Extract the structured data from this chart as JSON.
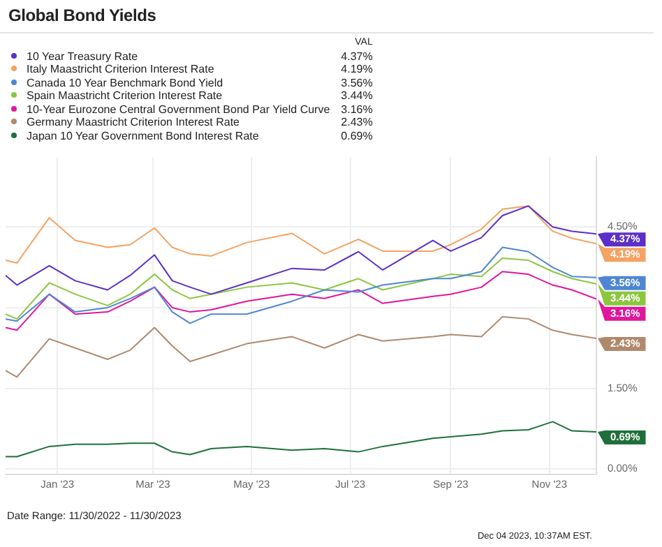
{
  "chart_data": {
    "type": "line",
    "title": "Global Bond Yields",
    "legend_title": "VAL",
    "legend": "top left",
    "grid": true,
    "marker": "none",
    "line_style": "solid",
    "x": [
      "2022-11-30",
      "2022-12-07",
      "2022-12-27",
      "2023-01-12",
      "2023-02-01",
      "2023-02-15",
      "2023-03-02",
      "2023-03-13",
      "2023-03-24",
      "2023-04-06",
      "2023-04-28",
      "2023-05-26",
      "2023-06-15",
      "2023-07-06",
      "2023-07-21",
      "2023-08-21",
      "2023-09-01",
      "2023-09-20",
      "2023-10-03",
      "2023-10-19",
      "2023-11-03",
      "2023-11-15",
      "2023-11-30"
    ],
    "xlim": [
      "2022-11-30",
      "2023-11-30"
    ],
    "xticks": [
      {
        "value": "2023-01-01",
        "label": "Jan '23"
      },
      {
        "value": "2023-03-01",
        "label": "Mar '23"
      },
      {
        "value": "2023-05-01",
        "label": "May '23"
      },
      {
        "value": "2023-07-01",
        "label": "Jul '23"
      },
      {
        "value": "2023-09-01",
        "label": "Sep '23"
      },
      {
        "value": "2023-11-01",
        "label": "Nov '23"
      }
    ],
    "ylim": [
      -0.1,
      5.8
    ],
    "yticks": [
      {
        "value": 0,
        "label": "0.00%"
      },
      {
        "value": 1.5,
        "label": "1.50%"
      },
      {
        "value": 3,
        "label": null
      },
      {
        "value": 4.5,
        "label": "4.50%"
      }
    ],
    "series": [
      {
        "name": "10 Year Treasury Rate",
        "color": "#5b2fc9",
        "values": [
          3.6,
          3.42,
          3.78,
          3.5,
          3.33,
          3.6,
          3.98,
          3.5,
          3.38,
          3.25,
          3.46,
          3.73,
          3.7,
          4.04,
          3.7,
          4.25,
          4.05,
          4.3,
          4.71,
          4.89,
          4.5,
          4.42,
          4.37
        ],
        "value_labels": [
          null,
          null,
          null,
          null,
          null,
          null,
          null,
          null,
          null,
          null,
          null,
          null,
          null,
          null,
          null,
          null,
          null,
          null,
          null,
          null,
          null,
          null,
          "4.37%"
        ]
      },
      {
        "name": "Italy Maastricht Criterion Interest Rate",
        "color": "#f5a262",
        "values": [
          3.88,
          3.83,
          4.67,
          4.25,
          4.12,
          4.17,
          4.48,
          4.12,
          4.0,
          3.96,
          4.21,
          4.38,
          4.0,
          4.27,
          4.05,
          4.05,
          4.17,
          4.46,
          4.83,
          4.89,
          4.42,
          4.29,
          4.19
        ],
        "value_labels": [
          null,
          null,
          null,
          null,
          null,
          null,
          null,
          null,
          null,
          null,
          null,
          null,
          null,
          null,
          null,
          null,
          null,
          null,
          null,
          null,
          null,
          null,
          "4.19%"
        ]
      },
      {
        "name": "Canada 10 Year Benchmark Bond Yield",
        "color": "#4e86d4",
        "values": [
          2.79,
          2.75,
          3.25,
          2.92,
          3.0,
          3.17,
          3.38,
          2.92,
          2.71,
          2.88,
          2.88,
          3.12,
          3.33,
          3.29,
          3.42,
          3.54,
          3.54,
          3.67,
          4.12,
          4.04,
          3.75,
          3.58,
          3.56
        ],
        "value_labels": [
          null,
          null,
          null,
          null,
          null,
          null,
          null,
          null,
          null,
          null,
          null,
          null,
          null,
          null,
          null,
          null,
          null,
          null,
          null,
          null,
          null,
          null,
          "3.56%"
        ]
      },
      {
        "name": "Spain Maastricht Criterion Interest Rate",
        "color": "#8cc63f",
        "values": [
          2.88,
          2.79,
          3.46,
          3.25,
          3.04,
          3.25,
          3.62,
          3.33,
          3.17,
          3.25,
          3.38,
          3.46,
          3.33,
          3.54,
          3.33,
          3.54,
          3.62,
          3.58,
          3.92,
          3.88,
          3.67,
          3.54,
          3.44
        ],
        "value_labels": [
          null,
          null,
          null,
          null,
          null,
          null,
          null,
          null,
          null,
          null,
          null,
          null,
          null,
          null,
          null,
          null,
          null,
          null,
          null,
          null,
          null,
          null,
          "3.44%"
        ]
      },
      {
        "name": "10-Year Eurozone Central Government Bond Par Yield Curve",
        "color": "#e0169c",
        "values": [
          2.63,
          2.58,
          3.25,
          2.88,
          2.92,
          3.12,
          3.38,
          3.0,
          2.92,
          2.96,
          3.12,
          3.25,
          3.17,
          3.33,
          3.08,
          3.21,
          3.25,
          3.38,
          3.67,
          3.62,
          3.42,
          3.33,
          3.16
        ],
        "value_labels": [
          null,
          null,
          null,
          null,
          null,
          null,
          null,
          null,
          null,
          null,
          null,
          null,
          null,
          null,
          null,
          null,
          null,
          null,
          null,
          null,
          null,
          null,
          "3.16%"
        ]
      },
      {
        "name": "Germany Maastricht Criterion Interest Rate",
        "color": "#b0896d",
        "values": [
          1.83,
          1.71,
          2.42,
          2.25,
          2.04,
          2.21,
          2.63,
          2.29,
          2.0,
          2.12,
          2.33,
          2.46,
          2.25,
          2.5,
          2.38,
          2.46,
          2.5,
          2.46,
          2.83,
          2.79,
          2.58,
          2.5,
          2.43
        ],
        "value_labels": [
          null,
          null,
          null,
          null,
          null,
          null,
          null,
          null,
          null,
          null,
          null,
          null,
          null,
          null,
          null,
          null,
          null,
          null,
          null,
          null,
          null,
          null,
          "2.43%"
        ]
      },
      {
        "name": "Japan 10 Year Government Bond Interest Rate",
        "color": "#1f6f3a",
        "values": [
          0.23,
          0.23,
          0.42,
          0.46,
          0.46,
          0.48,
          0.48,
          0.32,
          0.27,
          0.38,
          0.42,
          0.35,
          0.38,
          0.32,
          0.42,
          0.57,
          0.6,
          0.65,
          0.71,
          0.73,
          0.88,
          0.71,
          0.69
        ],
        "value_labels": [
          null,
          null,
          null,
          null,
          null,
          null,
          null,
          null,
          null,
          null,
          null,
          null,
          null,
          null,
          null,
          null,
          null,
          null,
          null,
          null,
          null,
          null,
          "0.69%"
        ]
      }
    ],
    "annotations": [
      "Date Range: 11/30/2022 - 11/30/2023",
      "Dec 04 2023, 10:37AM EST."
    ]
  }
}
